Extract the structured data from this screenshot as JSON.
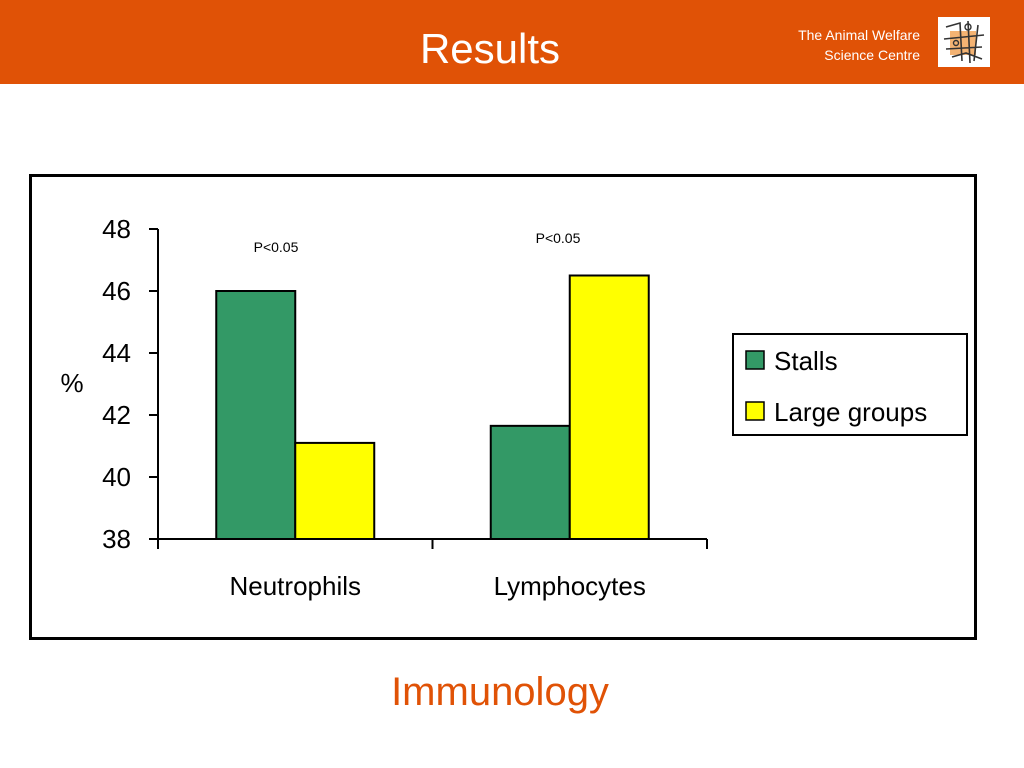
{
  "header": {
    "title": "Results",
    "org_name": "The Animal Welfare\nScience Centre",
    "logo_icon": "welfare-centre-logo-icon"
  },
  "footer": {
    "title": "Immunology"
  },
  "colors": {
    "header_bg": "#e05206",
    "stalls": "#339966",
    "large_groups": "#ffff00",
    "footer_text": "#e05206"
  },
  "chart_data": {
    "type": "bar",
    "categories": [
      "Neutrophils",
      "Lymphocytes"
    ],
    "series": [
      {
        "name": "Stalls",
        "values": [
          46.0,
          41.65
        ]
      },
      {
        "name": "Large groups",
        "values": [
          41.1,
          46.5
        ]
      }
    ],
    "ylabel": "%",
    "xlabel": "",
    "ylim": [
      38,
      48
    ],
    "yticks": [
      "38",
      "40",
      "42",
      "44",
      "46",
      "48"
    ],
    "annotations": [
      "P<0.05",
      "P<0.05"
    ],
    "legend": "right",
    "grid": false
  }
}
